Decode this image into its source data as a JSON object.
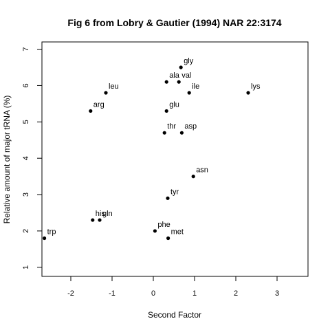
{
  "chart_data": {
    "type": "scatter",
    "title": "Fig 6 from Lobry & Gautier (1994) NAR 22:3174",
    "xlabel": "Second Factor",
    "ylabel": "Relative amount of major tRNA (%)",
    "xlim": [
      -2.7,
      3.75
    ],
    "ylim": [
      0.75,
      7.2
    ],
    "xticks": [
      -2,
      -1,
      0,
      1,
      2,
      3
    ],
    "yticks": [
      1,
      2,
      3,
      4,
      5,
      6,
      7
    ],
    "grid": false,
    "legend": "none",
    "point_color": "#000000",
    "points": [
      {
        "label": "gly",
        "x": 0.67,
        "y": 6.5
      },
      {
        "label": "ala",
        "x": 0.32,
        "y": 6.1
      },
      {
        "label": "val",
        "x": 0.62,
        "y": 6.1
      },
      {
        "label": "ile",
        "x": 0.87,
        "y": 5.8
      },
      {
        "label": "lys",
        "x": 2.3,
        "y": 5.8
      },
      {
        "label": "leu",
        "x": -1.15,
        "y": 5.8
      },
      {
        "label": "arg",
        "x": -1.52,
        "y": 5.3
      },
      {
        "label": "glu",
        "x": 0.32,
        "y": 5.3
      },
      {
        "label": "thr",
        "x": 0.27,
        "y": 4.7
      },
      {
        "label": "asp",
        "x": 0.69,
        "y": 4.7
      },
      {
        "label": "asn",
        "x": 0.97,
        "y": 3.5
      },
      {
        "label": "tyr",
        "x": 0.35,
        "y": 2.9
      },
      {
        "label": "his",
        "x": -1.47,
        "y": 2.3
      },
      {
        "label": "gln",
        "x": -1.3,
        "y": 2.3
      },
      {
        "label": "trp",
        "x": -2.64,
        "y": 1.8
      },
      {
        "label": "phe",
        "x": 0.04,
        "y": 2.0
      },
      {
        "label": "met",
        "x": 0.36,
        "y": 1.8
      }
    ]
  }
}
